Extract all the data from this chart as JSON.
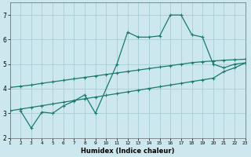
{
  "xlabel": "Humidex (Indice chaleur)",
  "bg_color": "#cce8ee",
  "line_color": "#1a7a6e",
  "grid_color": "#aacdd6",
  "xlim": [
    1,
    23
  ],
  "ylim": [
    2,
    7.5
  ],
  "yticks": [
    2,
    3,
    4,
    5,
    6,
    7
  ],
  "xticks": [
    1,
    2,
    3,
    4,
    5,
    6,
    7,
    8,
    9,
    10,
    11,
    12,
    13,
    14,
    15,
    16,
    17,
    18,
    19,
    20,
    21,
    22,
    23
  ],
  "line1_x": [
    1,
    2,
    3,
    4,
    5,
    6,
    7,
    8,
    9,
    10,
    11,
    12,
    13,
    14,
    15,
    16,
    17,
    18,
    19,
    20,
    21,
    22,
    23
  ],
  "line1_y": [
    4.05,
    4.1,
    4.15,
    4.22,
    4.28,
    4.34,
    4.4,
    4.46,
    4.52,
    4.58,
    4.64,
    4.7,
    4.76,
    4.82,
    4.88,
    4.94,
    5.0,
    5.06,
    5.1,
    5.13,
    5.16,
    5.18,
    5.2
  ],
  "line2_x": [
    1,
    2,
    3,
    4,
    5,
    6,
    7,
    8,
    9,
    10,
    11,
    12,
    13,
    14,
    15,
    16,
    17,
    18,
    19,
    20,
    21,
    22,
    23
  ],
  "line2_y": [
    3.1,
    3.17,
    3.24,
    3.31,
    3.38,
    3.45,
    3.52,
    3.59,
    3.66,
    3.73,
    3.8,
    3.87,
    3.94,
    4.01,
    4.08,
    4.15,
    4.22,
    4.29,
    4.36,
    4.43,
    4.7,
    4.85,
    5.05
  ],
  "line3_x": [
    2,
    3,
    4,
    5,
    6,
    7,
    8,
    9,
    11,
    12,
    13,
    14,
    15,
    16,
    17,
    18,
    19,
    20,
    21,
    22,
    23
  ],
  "line3_y": [
    3.1,
    2.4,
    3.05,
    3.0,
    3.3,
    3.5,
    3.75,
    3.0,
    5.0,
    6.3,
    6.1,
    6.1,
    6.15,
    7.0,
    7.0,
    6.2,
    6.1,
    5.0,
    4.85,
    5.0,
    5.05
  ]
}
